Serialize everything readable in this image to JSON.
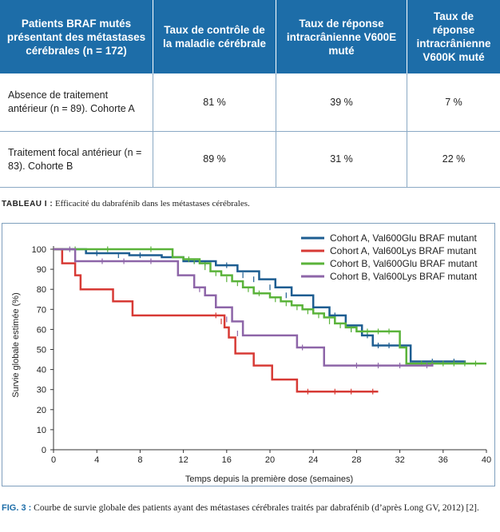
{
  "table": {
    "headers": [
      "Patients BRAF mutés présentant des métastases cérébrales (n = 172)",
      "Taux de contrôle de la maladie cérébrale",
      "Taux de réponse intracrânienne V600E muté",
      "Taux de réponse intracrânienne V600K muté"
    ],
    "rows": [
      [
        "Absence de traitement antérieur (n = 89). Cohorte A",
        "81 %",
        "39 %",
        "7 %"
      ],
      [
        "Traitement focal antérieur (n = 83). Cohorte B",
        "89 %",
        "31 %",
        "22 %"
      ]
    ],
    "caption_label": "TABLEAU I :",
    "caption_text": " Efficacité du dabrafénib dans les métastases cérébrales."
  },
  "chart_data": {
    "type": "line",
    "step": true,
    "xlabel": "Temps depuis la première dose (semaines)",
    "ylabel": "Survie globale estimée (%)",
    "xlim": [
      0,
      40
    ],
    "ylim": [
      0,
      100
    ],
    "xticks": [
      0,
      4,
      8,
      12,
      16,
      20,
      24,
      28,
      32,
      36,
      40
    ],
    "yticks": [
      0,
      10,
      20,
      30,
      40,
      50,
      60,
      70,
      80,
      90,
      100
    ],
    "grid": false,
    "legend_position": "top-right",
    "series": [
      {
        "name": "Cohort A, Val600Glu BRAF mutant",
        "color": "#1d5d91",
        "points": [
          [
            0,
            100
          ],
          [
            3,
            98
          ],
          [
            7,
            97
          ],
          [
            10,
            96
          ],
          [
            12,
            94
          ],
          [
            15,
            92
          ],
          [
            17,
            89
          ],
          [
            19,
            85
          ],
          [
            20.5,
            81
          ],
          [
            22,
            77
          ],
          [
            24,
            71
          ],
          [
            25.5,
            67
          ],
          [
            27,
            62
          ],
          [
            28.5,
            57
          ],
          [
            29.5,
            52
          ],
          [
            32,
            52
          ],
          [
            33,
            44
          ],
          [
            36,
            44
          ],
          [
            38,
            43
          ]
        ],
        "censor": [
          [
            4,
            98
          ],
          [
            6,
            97
          ],
          [
            8,
            97
          ],
          [
            13,
            94
          ],
          [
            14,
            93
          ],
          [
            16,
            92
          ],
          [
            17.5,
            87
          ],
          [
            18.5,
            85
          ],
          [
            20,
            81
          ],
          [
            21.5,
            77
          ],
          [
            23,
            71
          ],
          [
            26,
            67
          ],
          [
            27.5,
            60
          ],
          [
            29,
            57
          ],
          [
            30,
            52
          ],
          [
            31,
            52
          ],
          [
            32,
            52
          ],
          [
            35,
            44
          ],
          [
            37,
            44
          ]
        ]
      },
      {
        "name": "Cohort A, Val600Lys BRAF mutant",
        "color": "#d73a35",
        "points": [
          [
            0,
            100
          ],
          [
            0.8,
            93
          ],
          [
            2,
            87
          ],
          [
            2.5,
            80
          ],
          [
            5.5,
            74
          ],
          [
            7.3,
            67
          ],
          [
            15,
            67
          ],
          [
            15.8,
            61
          ],
          [
            16.2,
            56
          ],
          [
            16.8,
            48
          ],
          [
            18.5,
            42
          ],
          [
            20.2,
            35
          ],
          [
            22.5,
            29
          ],
          [
            30,
            29
          ]
        ],
        "censor": [
          [
            15,
            67
          ],
          [
            15.5,
            64
          ],
          [
            23.5,
            29
          ],
          [
            26,
            29
          ],
          [
            27.5,
            29
          ],
          [
            29.5,
            29
          ]
        ]
      },
      {
        "name": "Cohort B, Val600Glu BRAF mutant",
        "color": "#5ab33a",
        "points": [
          [
            0,
            100
          ],
          [
            10.5,
            100
          ],
          [
            11,
            96
          ],
          [
            12,
            95
          ],
          [
            13.5,
            93
          ],
          [
            14.5,
            89
          ],
          [
            15.5,
            87
          ],
          [
            16.5,
            84
          ],
          [
            17.5,
            81
          ],
          [
            18.5,
            78
          ],
          [
            20,
            76
          ],
          [
            21,
            74
          ],
          [
            22,
            72
          ],
          [
            23,
            70
          ],
          [
            24,
            68
          ],
          [
            25,
            66
          ],
          [
            26,
            63
          ],
          [
            27,
            61
          ],
          [
            28,
            59
          ],
          [
            31.5,
            59
          ],
          [
            32,
            51
          ],
          [
            32.6,
            43
          ],
          [
            40,
            43
          ]
        ],
        "censor": [
          [
            2,
            100
          ],
          [
            5,
            100
          ],
          [
            9,
            100
          ],
          [
            12.5,
            95
          ],
          [
            13,
            94
          ],
          [
            14,
            91
          ],
          [
            15,
            88
          ],
          [
            16,
            85
          ],
          [
            17,
            83
          ],
          [
            18,
            80
          ],
          [
            19,
            78
          ],
          [
            20.5,
            75
          ],
          [
            21.5,
            73
          ],
          [
            22.5,
            71
          ],
          [
            23.5,
            69
          ],
          [
            24.5,
            67
          ],
          [
            25.5,
            64
          ],
          [
            26.5,
            62
          ],
          [
            27.5,
            60
          ],
          [
            29,
            59
          ],
          [
            30,
            59
          ],
          [
            31,
            59
          ],
          [
            34,
            43
          ],
          [
            35,
            43
          ],
          [
            36,
            43
          ],
          [
            37,
            43
          ],
          [
            38,
            43
          ],
          [
            39,
            43
          ]
        ]
      },
      {
        "name": "Cohort B, Val600Lys BRAF mutant",
        "color": "#8d65a8",
        "points": [
          [
            0,
            100
          ],
          [
            2,
            94
          ],
          [
            11,
            94
          ],
          [
            11.5,
            87
          ],
          [
            13,
            81
          ],
          [
            14,
            77
          ],
          [
            15,
            71
          ],
          [
            16.5,
            64
          ],
          [
            17.5,
            57
          ],
          [
            22.5,
            51
          ],
          [
            25,
            42
          ],
          [
            34,
            42
          ],
          [
            35,
            43
          ]
        ],
        "censor": [
          [
            1.5,
            100
          ],
          [
            4.5,
            94
          ],
          [
            6.5,
            94
          ],
          [
            9,
            94
          ],
          [
            13.5,
            80
          ],
          [
            16,
            65
          ],
          [
            17,
            58
          ],
          [
            23,
            51
          ],
          [
            28,
            42
          ],
          [
            30,
            42
          ],
          [
            32,
            42
          ],
          [
            34.5,
            42
          ]
        ]
      }
    ]
  },
  "figure": {
    "caption_label": "FIG. 3 :",
    "caption_text": " Courbe de survie globale des patients ayant des métastases cérébrales traités par dabrafénib (d’après Long GV, 2012) [2]."
  }
}
